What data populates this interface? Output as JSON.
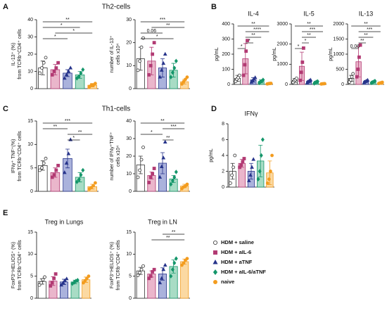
{
  "panels": [
    {
      "label": "A",
      "title": "Th2-cells"
    },
    {
      "label": "B"
    },
    {
      "label": "C",
      "title": "Th1-cells"
    },
    {
      "label": "D"
    },
    {
      "label": "E"
    }
  ],
  "legend": {
    "items": [
      {
        "name": "HDM + saline",
        "color": "#333333",
        "fill": "#ffffff",
        "marker": "circle"
      },
      {
        "name": "HDM + aIL-6",
        "color": "#b23a73",
        "fill": "#eab6cb",
        "marker": "square"
      },
      {
        "name": "HDM + aTNF",
        "color": "#27348b",
        "fill": "#aab2dc",
        "marker": "triangle"
      },
      {
        "name": "HDM + aIL-6/aTNF",
        "color": "#14966a",
        "fill": "#a8dcc5",
        "marker": "diamond"
      },
      {
        "name": "naive",
        "color": "#f39c1f",
        "fill": "#fbd9a2",
        "marker": "circle"
      }
    ]
  },
  "chart_data": [
    {
      "type": "bar",
      "ylabel": [
        "IL-13⁺ (%)",
        "from TCRb⁺CD4⁺ cells"
      ],
      "ylim": [
        0,
        40
      ],
      "yticks": [
        0,
        10,
        20,
        30,
        40
      ],
      "values": [
        12,
        11,
        9,
        8,
        2
      ],
      "errors": [
        4,
        3,
        2,
        2,
        1
      ],
      "points": [
        [
          9,
          12,
          15,
          18
        ],
        [
          8,
          10,
          12,
          15
        ],
        [
          6,
          8,
          10,
          12
        ],
        [
          6,
          7,
          9,
          11
        ],
        [
          1,
          2,
          2,
          3
        ]
      ],
      "brackets": [
        {
          "groups": [
            "HDM + saline",
            "naive"
          ],
          "label": "**"
        },
        {
          "groups": [
            "HDM + saline",
            "HDM + aIL-6/aTNF"
          ],
          "label": "*"
        },
        {
          "groups": [
            "HDM + aIL-6",
            "naive"
          ],
          "label": "*"
        },
        {
          "groups": [
            "HDM + saline",
            "HDM + aTNF"
          ],
          "label": "*"
        }
      ]
    },
    {
      "type": "bar",
      "ylabel": [
        "number of IL-13⁺",
        "cells x10⁴"
      ],
      "ylim": [
        0,
        30
      ],
      "yticks": [
        0,
        10,
        20,
        30
      ],
      "values": [
        13,
        12,
        9,
        8,
        3
      ],
      "errors": [
        5,
        6,
        4,
        3,
        1
      ],
      "points": [
        [
          8,
          12,
          18,
          22
        ],
        [
          6,
          10,
          15,
          20
        ],
        [
          5,
          8,
          11,
          15
        ],
        [
          5,
          7,
          9,
          12
        ],
        [
          2,
          3,
          4,
          5
        ]
      ],
      "brackets": [
        {
          "groups": [
            "HDM + saline",
            "naive"
          ],
          "label": "***"
        },
        {
          "groups": [
            "HDM + aIL-6",
            "naive"
          ],
          "label": "**"
        },
        {
          "groups": [
            "HDM + saline",
            "HDM + aTNF"
          ],
          "label": "0.06"
        },
        {
          "groups": [
            "HDM + saline",
            "HDM + aIL-6/aTNF"
          ],
          "label": "*"
        }
      ]
    },
    {
      "type": "bar",
      "title": "IL-4",
      "ylabel": [
        "pg/mL"
      ],
      "ylim": [
        0,
        400
      ],
      "yticks": [
        0,
        100,
        200,
        300,
        400
      ],
      "values": [
        40,
        170,
        30,
        20,
        5
      ],
      "errors": [
        20,
        100,
        15,
        10,
        3
      ],
      "points": [
        [
          20,
          35,
          45,
          60
        ],
        [
          60,
          130,
          220,
          290
        ],
        [
          15,
          25,
          35,
          45
        ],
        [
          10,
          18,
          22,
          30
        ],
        [
          3,
          5,
          6,
          7
        ]
      ],
      "brackets": [
        {
          "groups": [
            "HDM + saline",
            "naive"
          ],
          "label": "**"
        },
        {
          "groups": [
            "HDM + aIL-6",
            "naive"
          ],
          "label": "****"
        },
        {
          "groups": [
            "HDM + aIL-6",
            "HDM + aIL-6/aTNF"
          ],
          "label": "**"
        },
        {
          "groups": [
            "HDM + aIL-6",
            "HDM + aTNF"
          ],
          "label": "*"
        },
        {
          "groups": [
            "HDM + saline",
            "HDM + aIL-6"
          ],
          "label": "*"
        }
      ]
    },
    {
      "type": "bar",
      "title": "IL-5",
      "ylabel": [
        "pg/mL"
      ],
      "ylim": [
        0,
        3000
      ],
      "yticks": [
        0,
        1000,
        2000,
        3000
      ],
      "values": [
        200,
        900,
        150,
        100,
        30
      ],
      "errors": [
        100,
        700,
        50,
        50,
        10
      ],
      "points": [
        [
          100,
          180,
          230,
          300
        ],
        [
          200,
          600,
          1100,
          1800
        ],
        [
          80,
          130,
          180,
          220
        ],
        [
          50,
          90,
          120,
          150
        ],
        [
          20,
          30,
          35,
          40
        ]
      ],
      "brackets": [
        {
          "groups": [
            "HDM + saline",
            "naive"
          ],
          "label": "**"
        },
        {
          "groups": [
            "HDM + aIL-6",
            "naive"
          ],
          "label": "***"
        },
        {
          "groups": [
            "HDM + aIL-6",
            "HDM + aIL-6/aTNF"
          ],
          "label": "**"
        },
        {
          "groups": [
            "HDM + aIL-6",
            "HDM + aTNF"
          ],
          "label": "*"
        },
        {
          "groups": [
            "HDM + saline",
            "HDM + aIL-6"
          ],
          "label": "*"
        }
      ]
    },
    {
      "type": "bar",
      "title": "IL-13",
      "ylabel": [
        "pg/mL"
      ],
      "ylim": [
        0,
        2000
      ],
      "yticks": [
        0,
        500,
        1000,
        1500,
        2000
      ],
      "values": [
        200,
        750,
        100,
        80,
        50
      ],
      "errors": [
        100,
        500,
        30,
        30,
        20
      ],
      "points": [
        [
          80,
          150,
          250,
          350
        ],
        [
          250,
          500,
          900,
          1300
        ],
        [
          60,
          90,
          110,
          140
        ],
        [
          50,
          70,
          90,
          110
        ],
        [
          30,
          45,
          55,
          70
        ]
      ],
      "brackets": [
        {
          "groups": [
            "HDM + saline",
            "naive"
          ],
          "label": "**"
        },
        {
          "groups": [
            "HDM + aIL-6",
            "naive"
          ],
          "label": "***"
        },
        {
          "groups": [
            "HDM + aIL-6",
            "HDM + aIL-6/aTNF"
          ],
          "label": "**"
        },
        {
          "groups": [
            "HDM + aIL-6",
            "HDM + aTNF"
          ],
          "label": "**"
        },
        {
          "groups": [
            "HDM + saline",
            "HDM + aIL-6"
          ],
          "label": "0.06"
        }
      ]
    },
    {
      "type": "bar",
      "ylabel": [
        "IFNγ⁺ TNF⁺(%)",
        "from TCRb⁺CD4⁺ cells"
      ],
      "ylim": [
        0,
        15
      ],
      "yticks": [
        0,
        5,
        10,
        15
      ],
      "values": [
        5.5,
        4,
        7,
        3,
        1
      ],
      "errors": [
        1,
        1,
        2,
        1,
        0.5
      ],
      "points": [
        [
          4.5,
          5,
          6,
          7
        ],
        [
          3,
          3.5,
          4.5,
          5.5
        ],
        [
          4,
          6,
          8,
          11
        ],
        [
          2,
          2.5,
          3.5,
          4.5
        ],
        [
          0.5,
          0.8,
          1.2,
          1.8
        ]
      ],
      "brackets": [
        {
          "groups": [
            "HDM + saline",
            "naive"
          ],
          "label": "***"
        },
        {
          "groups": [
            "HDM + saline",
            "HDM + aTNF"
          ],
          "label": "**"
        },
        {
          "groups": [
            "HDM + aTNF",
            "naive"
          ],
          "label": "**"
        },
        {
          "groups": [
            "HDM + aTNF",
            "HDM + aIL-6/aTNF"
          ],
          "label": "*"
        }
      ]
    },
    {
      "type": "bar",
      "ylabel": [
        "number of IFNγ⁺TNF⁺",
        "cells x10⁴"
      ],
      "ylim": [
        0,
        40
      ],
      "yticks": [
        0,
        10,
        20,
        30,
        40
      ],
      "values": [
        15,
        9,
        16,
        7,
        3
      ],
      "errors": [
        5,
        2,
        6,
        2,
        1
      ],
      "points": [
        [
          8,
          12,
          18,
          25
        ],
        [
          5,
          8,
          10,
          13
        ],
        [
          8,
          14,
          19,
          28
        ],
        [
          4,
          6,
          8,
          11
        ],
        [
          1.5,
          2.5,
          3,
          4
        ]
      ],
      "brackets": [
        {
          "groups": [
            "HDM + saline",
            "naive"
          ],
          "label": "**"
        },
        {
          "groups": [
            "HDM + aTNF",
            "naive"
          ],
          "label": "***"
        },
        {
          "groups": [
            "HDM + saline",
            "HDM + aTNF"
          ],
          "label": "*"
        },
        {
          "groups": [
            "HDM + aTNF",
            "HDM + aIL-6/aTNF"
          ],
          "label": "**"
        }
      ]
    },
    {
      "type": "bar",
      "title": "IFNγ",
      "ylabel": [
        "pg/mL"
      ],
      "ylim": [
        0,
        8
      ],
      "yticks": [
        0,
        2,
        4,
        6,
        8
      ],
      "values": [
        2,
        3,
        2,
        3.3,
        1.8
      ],
      "errors": [
        1,
        0.5,
        1,
        2,
        1.5
      ],
      "points": [
        [
          0.5,
          1.5,
          2.5,
          4
        ],
        [
          2.5,
          2.8,
          3.2,
          3.6
        ],
        [
          0.8,
          1.5,
          2.5,
          3.5
        ],
        [
          1,
          2,
          4,
          6
        ],
        [
          0.5,
          1,
          2,
          4
        ]
      ],
      "brackets": []
    },
    {
      "type": "bar",
      "title": "Treg in Lungs",
      "ylabel": [
        "FoxP3⁺HELIOS⁺ (%)",
        "from TCRb⁺CD4⁺ cells"
      ],
      "ylim": [
        0,
        15
      ],
      "yticks": [
        0,
        5,
        10,
        15
      ],
      "values": [
        3.8,
        3.9,
        3.7,
        3.7,
        4.2
      ],
      "errors": [
        0.6,
        1,
        0.6,
        0.4,
        0.6
      ],
      "points": [
        [
          3,
          3.5,
          4.2,
          4.8
        ],
        [
          2.8,
          3.5,
          4.5,
          5.5
        ],
        [
          3,
          3.5,
          4,
          4.4
        ],
        [
          3.3,
          3.6,
          3.9,
          4.1
        ],
        [
          3.5,
          4,
          4.5,
          5
        ]
      ],
      "brackets": []
    },
    {
      "type": "bar",
      "title": "Treg in LN",
      "ylabel": [
        "FoxP3⁺HELIOS⁺ (%)",
        "from TCRb⁺CD4⁺ cells"
      ],
      "ylim": [
        0,
        15
      ],
      "yticks": [
        0,
        5,
        10,
        15
      ],
      "values": [
        6.2,
        5.5,
        5.5,
        7.2,
        8.3
      ],
      "errors": [
        0.8,
        0.7,
        1.4,
        1.5,
        0.6
      ],
      "points": [
        [
          5.2,
          5.8,
          6.5,
          7.3
        ],
        [
          4.5,
          5,
          6,
          6.5
        ],
        [
          3.5,
          4.5,
          6.5,
          7.5
        ],
        [
          5,
          6.5,
          8,
          9
        ],
        [
          7.5,
          8,
          8.6,
          9
        ]
      ],
      "brackets": [
        {
          "groups": [
            "HDM + aTNF",
            "naive"
          ],
          "label": "**"
        },
        {
          "groups": [
            "HDM + aIL-6",
            "naive"
          ],
          "label": "**"
        }
      ]
    }
  ]
}
